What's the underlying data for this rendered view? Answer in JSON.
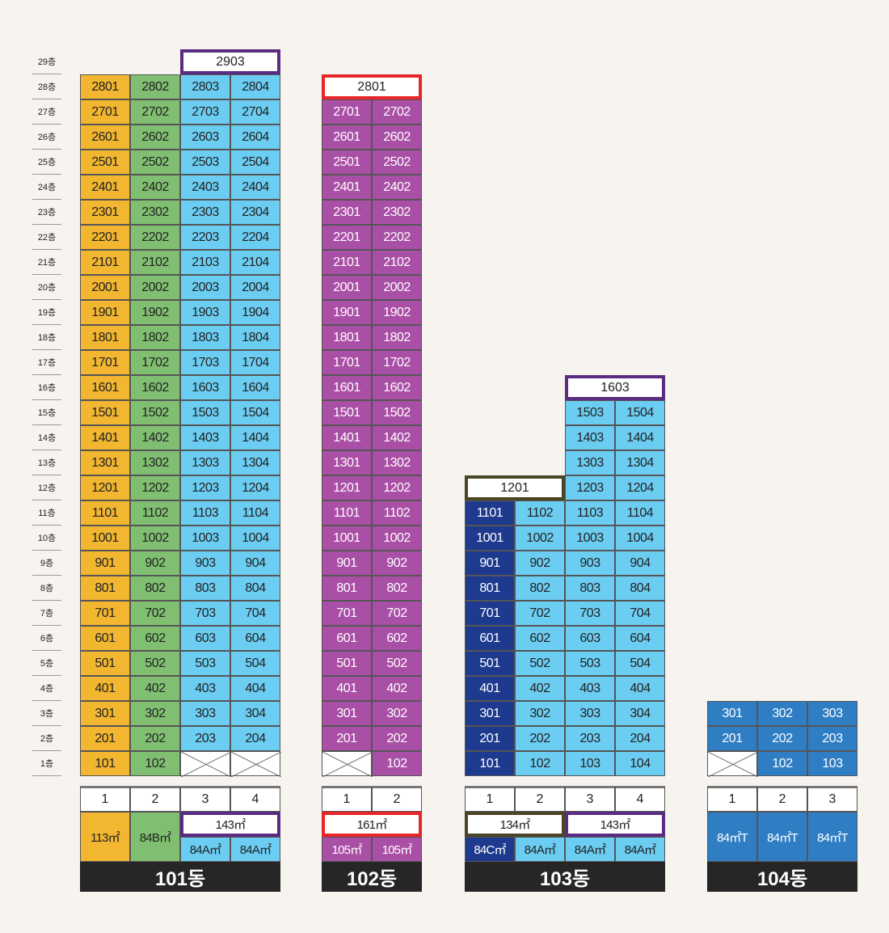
{
  "floors": [
    "1층",
    "2층",
    "3층",
    "4층",
    "5층",
    "6층",
    "7층",
    "8층",
    "9층",
    "10층",
    "11층",
    "12층",
    "13층",
    "14층",
    "15층",
    "16층",
    "17층",
    "18층",
    "19층",
    "20층",
    "21층",
    "22층",
    "23층",
    "24층",
    "25층",
    "26층",
    "27층",
    "28층",
    "29층"
  ],
  "colors": {
    "yellow": "#f2b630",
    "green": "#80bf71",
    "lightblue": "#6ccdf2",
    "purple": "#a94fa6",
    "navy": "#1e3a8e",
    "blue": "#2f7ec4",
    "box_purple": "#5a2d82",
    "box_red": "#e8262a",
    "box_olive": "#4a4526",
    "label_bg": "#262626",
    "background": "#f7f4f0"
  },
  "buildings": [
    {
      "name": "101동",
      "lines": [
        {
          "number": "1",
          "color": "yellow"
        },
        {
          "number": "2",
          "color": "green"
        },
        {
          "number": "3",
          "color": "lightblue"
        },
        {
          "number": "4",
          "color": "lightblue"
        }
      ],
      "units": [
        [
          "101",
          "102",
          null,
          null
        ],
        [
          "201",
          "202",
          "203",
          "204"
        ],
        [
          "301",
          "302",
          "303",
          "304"
        ],
        [
          "401",
          "402",
          "403",
          "404"
        ],
        [
          "501",
          "502",
          "503",
          "504"
        ],
        [
          "601",
          "602",
          "603",
          "604"
        ],
        [
          "701",
          "702",
          "703",
          "704"
        ],
        [
          "801",
          "802",
          "803",
          "804"
        ],
        [
          "901",
          "902",
          "903",
          "904"
        ],
        [
          "1001",
          "1002",
          "1003",
          "1004"
        ],
        [
          "1101",
          "1102",
          "1103",
          "1104"
        ],
        [
          "1201",
          "1202",
          "1203",
          "1204"
        ],
        [
          "1301",
          "1302",
          "1303",
          "1304"
        ],
        [
          "1401",
          "1402",
          "1403",
          "1404"
        ],
        [
          "1501",
          "1502",
          "1503",
          "1504"
        ],
        [
          "1601",
          "1602",
          "1603",
          "1604"
        ],
        [
          "1701",
          "1702",
          "1703",
          "1704"
        ],
        [
          "1801",
          "1802",
          "1803",
          "1804"
        ],
        [
          "1901",
          "1902",
          "1903",
          "1904"
        ],
        [
          "2001",
          "2002",
          "2003",
          "2004"
        ],
        [
          "2101",
          "2102",
          "2103",
          "2104"
        ],
        [
          "2201",
          "2202",
          "2203",
          "2204"
        ],
        [
          "2301",
          "2302",
          "2303",
          "2304"
        ],
        [
          "2401",
          "2402",
          "2403",
          "2404"
        ],
        [
          "2501",
          "2502",
          "2503",
          "2504"
        ],
        [
          "2601",
          "2602",
          "2603",
          "2604"
        ],
        [
          "2701",
          "2702",
          "2703",
          "2704"
        ],
        [
          "2801",
          "2802",
          "2803",
          "2804"
        ]
      ],
      "special_units": [
        {
          "label": "2903",
          "floor": 29,
          "from_line": 3,
          "to_line": 4,
          "border": "box_purple"
        }
      ],
      "area_groups": [
        {
          "label": "113㎡",
          "from_line": 1,
          "to_line": 1,
          "color": "yellow",
          "full": true
        },
        {
          "label": "84B㎡",
          "from_line": 2,
          "to_line": 2,
          "color": "green",
          "full": true
        },
        {
          "label": "143㎡",
          "from_line": 3,
          "to_line": 4,
          "border": "box_purple",
          "full": false
        },
        {
          "label": "84A㎡",
          "from_line": 3,
          "to_line": 3,
          "color": "lightblue",
          "full": false
        },
        {
          "label": "84A㎡",
          "from_line": 4,
          "to_line": 4,
          "color": "lightblue",
          "full": false
        }
      ]
    },
    {
      "name": "102동",
      "lines": [
        {
          "number": "1",
          "color": "purple"
        },
        {
          "number": "2",
          "color": "purple"
        }
      ],
      "units": [
        [
          null,
          "102"
        ],
        [
          "201",
          "202"
        ],
        [
          "301",
          "302"
        ],
        [
          "401",
          "402"
        ],
        [
          "501",
          "502"
        ],
        [
          "601",
          "602"
        ],
        [
          "701",
          "702"
        ],
        [
          "801",
          "802"
        ],
        [
          "901",
          "902"
        ],
        [
          "1001",
          "1002"
        ],
        [
          "1101",
          "1102"
        ],
        [
          "1201",
          "1202"
        ],
        [
          "1301",
          "1302"
        ],
        [
          "1401",
          "1402"
        ],
        [
          "1501",
          "1502"
        ],
        [
          "1601",
          "1602"
        ],
        [
          "1701",
          "1702"
        ],
        [
          "1801",
          "1802"
        ],
        [
          "1901",
          "1902"
        ],
        [
          "2001",
          "2002"
        ],
        [
          "2101",
          "2102"
        ],
        [
          "2201",
          "2202"
        ],
        [
          "2301",
          "2302"
        ],
        [
          "2401",
          "2402"
        ],
        [
          "2501",
          "2502"
        ],
        [
          "2601",
          "2602"
        ],
        [
          "2701",
          "2702"
        ]
      ],
      "special_units": [
        {
          "label": "2801",
          "floor": 28,
          "from_line": 1,
          "to_line": 2,
          "border": "box_red"
        }
      ],
      "area_groups": [
        {
          "label": "161㎡",
          "from_line": 1,
          "to_line": 2,
          "border": "box_red",
          "full": false
        },
        {
          "label": "105㎡",
          "from_line": 1,
          "to_line": 1,
          "color": "purple",
          "full": false
        },
        {
          "label": "105㎡",
          "from_line": 2,
          "to_line": 2,
          "color": "purple",
          "full": false
        }
      ]
    },
    {
      "name": "103동",
      "lines": [
        {
          "number": "1",
          "color": "navy"
        },
        {
          "number": "2",
          "color": "lightblue"
        },
        {
          "number": "3",
          "color": "lightblue"
        },
        {
          "number": "4",
          "color": "lightblue"
        }
      ],
      "units": [
        [
          "101",
          "102",
          "103",
          "104"
        ],
        [
          "201",
          "202",
          "203",
          "204"
        ],
        [
          "301",
          "302",
          "303",
          "304"
        ],
        [
          "401",
          "402",
          "403",
          "404"
        ],
        [
          "501",
          "502",
          "503",
          "504"
        ],
        [
          "601",
          "602",
          "603",
          "604"
        ],
        [
          "701",
          "702",
          "703",
          "704"
        ],
        [
          "801",
          "802",
          "803",
          "804"
        ],
        [
          "901",
          "902",
          "903",
          "904"
        ],
        [
          "1001",
          "1002",
          "1003",
          "1004"
        ],
        [
          "1101",
          "1102",
          "1103",
          "1104"
        ],
        [
          null,
          null,
          "1203",
          "1204"
        ],
        [
          null,
          null,
          "1303",
          "1304"
        ],
        [
          null,
          null,
          "1403",
          "1404"
        ],
        [
          null,
          null,
          "1503",
          "1504"
        ]
      ],
      "special_units": [
        {
          "label": "1201",
          "floor": 12,
          "from_line": 1,
          "to_line": 2,
          "border": "box_olive"
        },
        {
          "label": "1603",
          "floor": 16,
          "from_line": 3,
          "to_line": 4,
          "border": "box_purple"
        }
      ],
      "area_groups": [
        {
          "label": "134㎡",
          "from_line": 1,
          "to_line": 2,
          "border": "box_olive",
          "full": false
        },
        {
          "label": "143㎡",
          "from_line": 3,
          "to_line": 4,
          "border": "box_purple",
          "full": false
        },
        {
          "label": "84C㎡",
          "from_line": 1,
          "to_line": 1,
          "color": "navy",
          "full": false
        },
        {
          "label": "84A㎡",
          "from_line": 2,
          "to_line": 2,
          "color": "lightblue",
          "full": false
        },
        {
          "label": "84A㎡",
          "from_line": 3,
          "to_line": 3,
          "color": "lightblue",
          "full": false
        },
        {
          "label": "84A㎡",
          "from_line": 4,
          "to_line": 4,
          "color": "lightblue",
          "full": false
        }
      ]
    },
    {
      "name": "104동",
      "lines": [
        {
          "number": "1",
          "color": "blue"
        },
        {
          "number": "2",
          "color": "blue"
        },
        {
          "number": "3",
          "color": "blue"
        }
      ],
      "units": [
        [
          null,
          "102",
          "103"
        ],
        [
          "201",
          "202",
          "203"
        ],
        [
          "301",
          "302",
          "303"
        ]
      ],
      "special_units": [],
      "area_groups": [
        {
          "label": "84㎡T",
          "from_line": 1,
          "to_line": 1,
          "color": "blue",
          "full": true
        },
        {
          "label": "84㎡T",
          "from_line": 2,
          "to_line": 2,
          "color": "blue",
          "full": true
        },
        {
          "label": "84㎡T",
          "from_line": 3,
          "to_line": 3,
          "color": "blue",
          "full": true
        }
      ]
    }
  ]
}
